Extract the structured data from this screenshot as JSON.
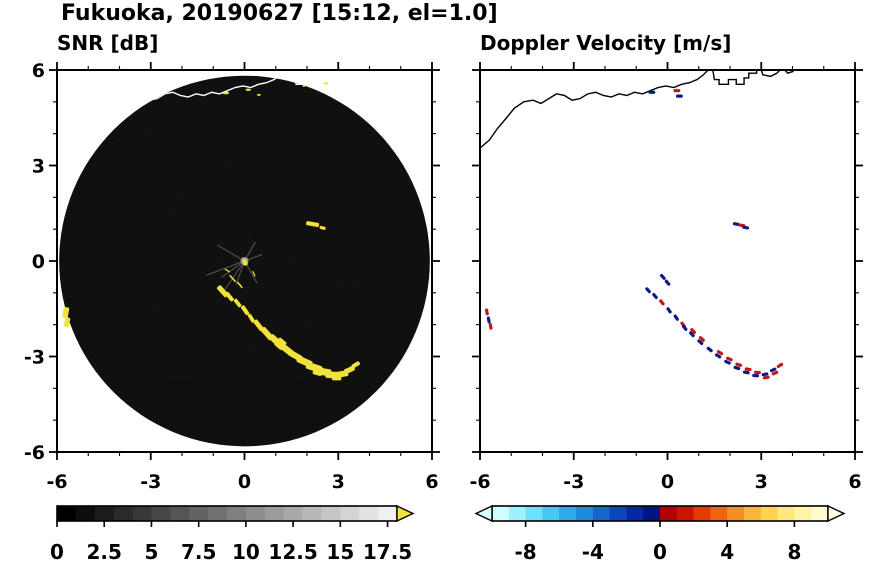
{
  "figure_title": "Fukuoka, 20190627 [15:12, el=1.0]",
  "panels": {
    "snr_title": "SNR [dB]",
    "doppler_title": "Doppler Velocity [m/s]"
  },
  "coastline": {
    "color_on_disk": "#ffffff",
    "color_on_white": "#000000",
    "paths": [
      [
        [
          -6.0,
          3.55
        ],
        [
          -5.7,
          3.8
        ],
        [
          -5.45,
          4.15
        ],
        [
          -5.15,
          4.5
        ],
        [
          -4.9,
          4.8
        ],
        [
          -4.6,
          5.0
        ],
        [
          -4.3,
          5.05
        ],
        [
          -4.05,
          4.95
        ],
        [
          -3.8,
          5.1
        ],
        [
          -3.55,
          5.25
        ],
        [
          -3.3,
          5.2
        ],
        [
          -3.05,
          5.05
        ],
        [
          -2.8,
          5.1
        ],
        [
          -2.55,
          5.25
        ],
        [
          -2.3,
          5.3
        ],
        [
          -2.05,
          5.2
        ],
        [
          -1.8,
          5.15
        ],
        [
          -1.55,
          5.25
        ],
        [
          -1.3,
          5.2
        ],
        [
          -1.05,
          5.3
        ],
        [
          -0.8,
          5.25
        ],
        [
          -0.55,
          5.35
        ],
        [
          -0.3,
          5.45
        ],
        [
          -0.05,
          5.5
        ],
        [
          0.2,
          5.45
        ],
        [
          0.45,
          5.55
        ],
        [
          0.7,
          5.6
        ],
        [
          0.95,
          5.7
        ],
        [
          1.15,
          5.85
        ],
        [
          1.3,
          6.0
        ]
      ],
      [
        [
          1.45,
          6.0
        ],
        [
          1.5,
          5.7
        ],
        [
          1.65,
          5.7
        ],
        [
          1.65,
          5.55
        ],
        [
          1.95,
          5.55
        ],
        [
          1.95,
          5.7
        ],
        [
          2.2,
          5.7
        ],
        [
          2.2,
          5.55
        ],
        [
          2.45,
          5.55
        ],
        [
          2.45,
          5.75
        ],
        [
          2.6,
          5.75
        ],
        [
          2.6,
          5.9
        ],
        [
          2.85,
          5.9
        ],
        [
          2.85,
          6.0
        ]
      ],
      [
        [
          3.0,
          6.0
        ],
        [
          3.05,
          5.85
        ],
        [
          3.3,
          5.8
        ],
        [
          3.5,
          5.9
        ],
        [
          3.6,
          6.0
        ]
      ],
      [
        [
          3.75,
          6.0
        ],
        [
          3.85,
          5.9
        ],
        [
          4.0,
          5.95
        ],
        [
          4.05,
          6.0
        ]
      ]
    ]
  },
  "chart_data": [
    {
      "type": "scatter",
      "name": "snr",
      "title": "SNR [dB]",
      "xlim": [
        -6,
        6
      ],
      "ylim": [
        -6,
        6
      ],
      "xtick_vals": [
        -6,
        -3,
        0,
        3,
        6
      ],
      "xtick_labels": [
        "-6",
        "-3",
        "0",
        "3",
        "6"
      ],
      "ytick_vals": [
        6,
        3,
        0,
        -3,
        -6
      ],
      "ytick_labels": [
        "6",
        "3",
        "0",
        "-3",
        "-6"
      ],
      "minor_step": 1,
      "radar_disk": {
        "cx": 0,
        "cy": 0,
        "r": 5.93,
        "color": "#0b0b0b"
      },
      "echo_color": "#f2e23c",
      "spokes": [
        {
          "a": 150,
          "l": 1.0
        },
        {
          "a": 200,
          "l": 1.3
        },
        {
          "a": 215,
          "l": 0.9
        },
        {
          "a": 235,
          "l": 1.1
        },
        {
          "a": 250,
          "l": 0.8
        },
        {
          "a": 60,
          "l": 0.7
        },
        {
          "a": 20,
          "l": 0.6
        },
        {
          "a": 300,
          "l": 0.8
        }
      ],
      "echoes": [
        {
          "x": -0.7,
          "y": -0.95,
          "w": 0.42,
          "h": 0.16,
          "r": 48
        },
        {
          "x": -0.48,
          "y": -1.12,
          "w": 0.34,
          "h": 0.13,
          "r": 50
        },
        {
          "x": -0.22,
          "y": -1.32,
          "w": 0.3,
          "h": 0.12,
          "r": 52
        },
        {
          "x": 0.02,
          "y": -1.55,
          "w": 0.34,
          "h": 0.13,
          "r": 55
        },
        {
          "x": 0.22,
          "y": -1.8,
          "w": 0.3,
          "h": 0.12,
          "r": 58
        },
        {
          "x": 0.45,
          "y": -2.02,
          "w": 0.4,
          "h": 0.15,
          "r": 52
        },
        {
          "x": 0.72,
          "y": -2.28,
          "w": 0.46,
          "h": 0.18,
          "r": 48
        },
        {
          "x": 1.02,
          "y": -2.52,
          "w": 0.5,
          "h": 0.2,
          "r": 42
        },
        {
          "x": 1.32,
          "y": -2.76,
          "w": 0.5,
          "h": 0.2,
          "r": 38
        },
        {
          "x": 1.62,
          "y": -2.97,
          "w": 0.46,
          "h": 0.19,
          "r": 30
        },
        {
          "x": 1.92,
          "y": -3.16,
          "w": 0.5,
          "h": 0.21,
          "r": 24
        },
        {
          "x": 2.22,
          "y": -3.34,
          "w": 0.5,
          "h": 0.22,
          "r": 18
        },
        {
          "x": 2.52,
          "y": -3.48,
          "w": 0.5,
          "h": 0.22,
          "r": 10
        },
        {
          "x": 2.82,
          "y": -3.58,
          "w": 0.46,
          "h": 0.21,
          "r": 4
        },
        {
          "x": 3.12,
          "y": -3.55,
          "w": 0.4,
          "h": 0.19,
          "r": -10
        },
        {
          "x": 3.36,
          "y": -3.42,
          "w": 0.34,
          "h": 0.16,
          "r": -24
        },
        {
          "x": 3.56,
          "y": -3.26,
          "w": 0.28,
          "h": 0.13,
          "r": -32
        },
        {
          "x": 1.15,
          "y": -2.6,
          "w": 0.3,
          "h": 0.3,
          "r": 40
        },
        {
          "x": 2.35,
          "y": -3.45,
          "w": 0.3,
          "h": 0.28,
          "r": 15
        },
        {
          "x": 2.95,
          "y": -3.62,
          "w": 0.3,
          "h": 0.26,
          "r": 0
        },
        {
          "x": -5.72,
          "y": -1.62,
          "w": 0.18,
          "h": 0.34,
          "r": 10
        },
        {
          "x": -5.68,
          "y": -1.92,
          "w": 0.16,
          "h": 0.3,
          "r": 15
        },
        {
          "x": 2.18,
          "y": 1.16,
          "w": 0.42,
          "h": 0.13,
          "r": 10
        },
        {
          "x": 2.5,
          "y": 1.04,
          "w": 0.2,
          "h": 0.1,
          "r": 15
        },
        {
          "x": -0.6,
          "y": 5.28,
          "w": 0.2,
          "h": 0.08,
          "r": 0
        },
        {
          "x": 0.12,
          "y": 5.38,
          "w": 0.16,
          "h": 0.07,
          "r": 0
        },
        {
          "x": 0.46,
          "y": 5.22,
          "w": 0.12,
          "h": 0.06,
          "r": 0
        },
        {
          "x": 2.6,
          "y": 5.58,
          "w": 0.16,
          "h": 0.07,
          "r": 0
        },
        {
          "x": 1.9,
          "y": 5.5,
          "w": 0.1,
          "h": 0.06,
          "r": 0
        },
        {
          "x": 0.03,
          "y": -0.08,
          "w": 0.14,
          "h": 0.12,
          "r": 0
        },
        {
          "x": -0.38,
          "y": -0.55,
          "w": 0.3,
          "h": 0.05,
          "r": 48
        },
        {
          "x": -0.15,
          "y": -0.75,
          "w": 0.26,
          "h": 0.05,
          "r": 50
        },
        {
          "x": 0.3,
          "y": -0.4,
          "w": 0.2,
          "h": 0.04,
          "r": 65
        },
        {
          "x": -0.55,
          "y": -0.3,
          "w": 0.2,
          "h": 0.04,
          "r": 30
        }
      ],
      "colorbar": {
        "range": [
          0,
          18
        ],
        "segments": 18,
        "start_color": "#000000",
        "end_color": "#f0f0f0",
        "over_arrow_color": "#f2e23c",
        "tick_vals": [
          0,
          2.5,
          5,
          7.5,
          10,
          12.5,
          15,
          17.5
        ],
        "tick_labels": [
          "0",
          "2.5",
          "5",
          "7.5",
          "10",
          "12.5",
          "15",
          "17.5"
        ]
      }
    },
    {
      "type": "scatter",
      "name": "doppler",
      "title": "Doppler Velocity [m/s]",
      "xlim": [
        -6,
        6
      ],
      "ylim": [
        -6,
        6
      ],
      "xtick_vals": [
        -6,
        -3,
        0,
        3,
        6
      ],
      "xtick_labels": [
        "-6",
        "-3",
        "0",
        "3",
        "6"
      ],
      "ytick_vals": [
        6,
        3,
        0,
        -3,
        -6
      ],
      "ytick_labels": [],
      "minor_step": 1,
      "neg_color": "#0a1a8c",
      "pos_color": "#c41414",
      "echoes": [
        {
          "x": -0.62,
          "y": -0.92,
          "c": "n",
          "r": 48
        },
        {
          "x": -0.4,
          "y": -1.1,
          "c": "n",
          "r": 50
        },
        {
          "x": -0.18,
          "y": -1.3,
          "c": "p",
          "r": 52
        },
        {
          "x": 0.05,
          "y": -1.55,
          "c": "n",
          "r": 55
        },
        {
          "x": 0.28,
          "y": -1.78,
          "c": "n",
          "r": 56
        },
        {
          "x": 0.5,
          "y": -2.0,
          "c": "p",
          "r": 52
        },
        {
          "x": 0.55,
          "y": -2.1,
          "c": "n",
          "r": 52
        },
        {
          "x": 0.78,
          "y": -2.3,
          "c": "n",
          "r": 48
        },
        {
          "x": 0.82,
          "y": -2.2,
          "c": "p",
          "r": 48
        },
        {
          "x": 1.05,
          "y": -2.55,
          "c": "n",
          "r": 42
        },
        {
          "x": 1.1,
          "y": -2.45,
          "c": "p",
          "r": 42
        },
        {
          "x": 1.35,
          "y": -2.78,
          "c": "n",
          "r": 38
        },
        {
          "x": 1.62,
          "y": -2.98,
          "c": "n",
          "r": 30
        },
        {
          "x": 1.68,
          "y": -2.88,
          "c": "p",
          "r": 30
        },
        {
          "x": 1.92,
          "y": -3.18,
          "c": "n",
          "r": 24
        },
        {
          "x": 1.98,
          "y": -3.08,
          "c": "p",
          "r": 24
        },
        {
          "x": 2.22,
          "y": -3.36,
          "c": "n",
          "r": 18
        },
        {
          "x": 2.28,
          "y": -3.26,
          "c": "p",
          "r": 18
        },
        {
          "x": 2.52,
          "y": -3.5,
          "c": "n",
          "r": 10
        },
        {
          "x": 2.58,
          "y": -3.4,
          "c": "p",
          "r": 10
        },
        {
          "x": 2.82,
          "y": -3.6,
          "c": "n",
          "r": 4
        },
        {
          "x": 2.88,
          "y": -3.5,
          "c": "p",
          "r": 4
        },
        {
          "x": 3.12,
          "y": -3.56,
          "c": "n",
          "r": -10
        },
        {
          "x": 3.16,
          "y": -3.66,
          "c": "p",
          "r": -10
        },
        {
          "x": 3.38,
          "y": -3.42,
          "c": "n",
          "r": -24
        },
        {
          "x": 3.44,
          "y": -3.52,
          "c": "p",
          "r": -24
        },
        {
          "x": 3.6,
          "y": -3.28,
          "c": "p",
          "r": -32
        },
        {
          "x": -5.78,
          "y": -1.6,
          "c": "p",
          "r": 80
        },
        {
          "x": -5.72,
          "y": -1.85,
          "c": "n",
          "r": 80
        },
        {
          "x": -5.66,
          "y": -2.05,
          "c": "p",
          "r": 80
        },
        {
          "x": 2.2,
          "y": 1.16,
          "c": "n",
          "r": 10
        },
        {
          "x": 2.38,
          "y": 1.12,
          "c": "p",
          "r": 10
        },
        {
          "x": 2.5,
          "y": 1.05,
          "c": "n",
          "r": 10
        },
        {
          "x": 0.3,
          "y": 5.35,
          "c": "p",
          "r": 0
        },
        {
          "x": 0.38,
          "y": 5.18,
          "c": "n",
          "r": 0
        },
        {
          "x": -0.5,
          "y": 5.3,
          "c": "n",
          "r": 0
        },
        {
          "x": -0.15,
          "y": -0.5,
          "c": "n",
          "r": 48
        },
        {
          "x": 0.0,
          "y": -0.68,
          "c": "n",
          "r": 50
        }
      ],
      "colorbar": {
        "range": [
          -10,
          10
        ],
        "colors": [
          "#d0ffff",
          "#9ef2ff",
          "#6ee0ff",
          "#46c8f5",
          "#2eaae8",
          "#1e8cdc",
          "#1468cc",
          "#0c46bc",
          "#0628a8",
          "#021484",
          "#b00000",
          "#cc1400",
          "#e23c00",
          "#ee6410",
          "#f58c24",
          "#fab43c",
          "#ffd250",
          "#ffe87a",
          "#fff4a6",
          "#fffcd0"
        ],
        "under_arrow_color": "#d8ffff",
        "over_arrow_color": "#ffffe4",
        "tick_vals": [
          -8,
          -4,
          0,
          4,
          8
        ],
        "tick_labels": [
          "-8",
          "-4",
          "0",
          "4",
          "8"
        ]
      }
    }
  ]
}
